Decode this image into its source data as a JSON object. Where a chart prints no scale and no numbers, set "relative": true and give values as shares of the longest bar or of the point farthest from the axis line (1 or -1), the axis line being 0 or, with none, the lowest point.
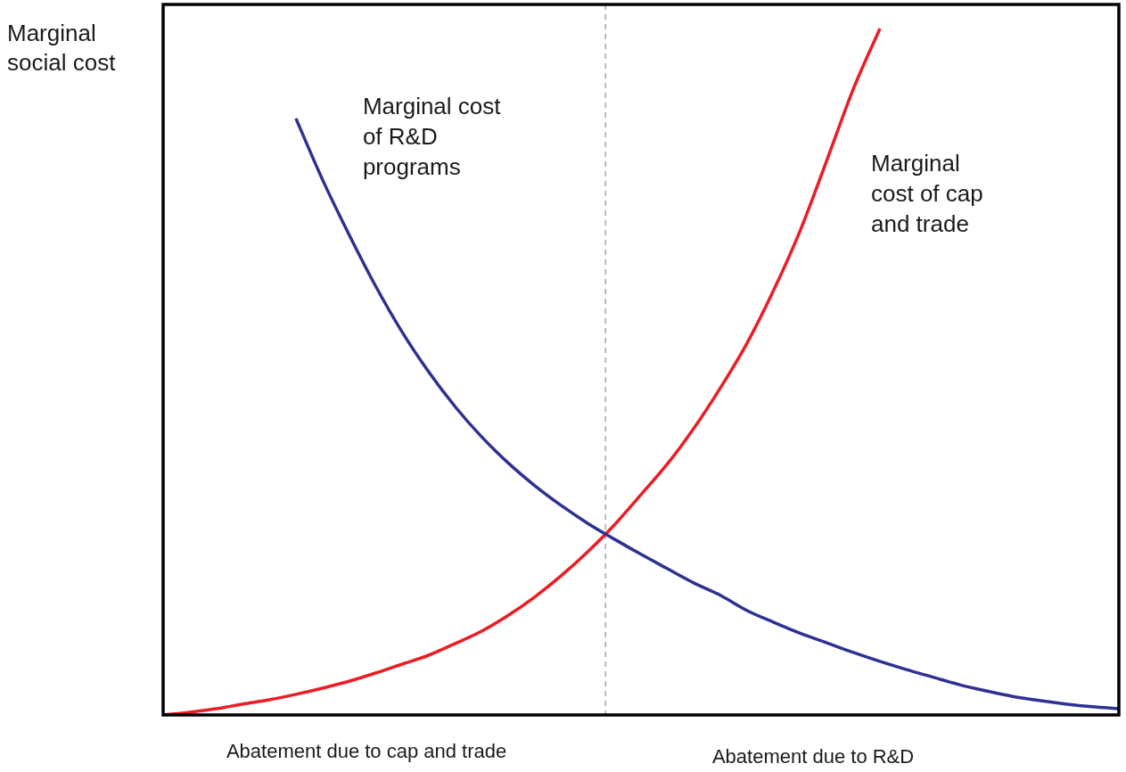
{
  "chart_data": {
    "type": "line",
    "relative": true,
    "ylabel": "Marginal social cost",
    "categories": [
      null,
      null,
      null,
      null,
      null,
      null,
      null,
      null,
      null,
      null,
      null,
      null,
      null,
      null,
      null,
      null,
      null,
      null,
      null,
      null,
      null,
      null,
      null,
      null,
      null,
      null,
      null,
      null,
      null,
      null,
      null,
      null,
      null,
      null,
      null,
      null,
      null
    ],
    "series": [
      {
        "name": "Marginal cost of R&D programs",
        "color": "#2e3192",
        "values": [
          null,
          null,
          null,
          null,
          null,
          0.869,
          0.78,
          0.7,
          0.625,
          0.558,
          0.5,
          0.449,
          0.405,
          0.367,
          0.334,
          0.305,
          0.279,
          0.256,
          0.234,
          0.213,
          0.192,
          0.174,
          0.152,
          0.135,
          0.119,
          0.105,
          0.091,
          0.078,
          0.066,
          0.055,
          0.044,
          0.035,
          0.027,
          0.021,
          0.016,
          0.012,
          0.009
        ]
      },
      {
        "name": "Marginal cost of cap and trade",
        "color": "#ed1c24",
        "values": [
          0,
          0.004,
          0.009,
          0.016,
          0.022,
          0.03,
          0.039,
          0.049,
          0.061,
          0.074,
          0.087,
          0.104,
          0.122,
          0.145,
          0.172,
          0.203,
          0.238,
          0.277,
          0.321,
          0.366,
          0.418,
          0.477,
          0.542,
          0.619,
          0.706,
          0.808,
          0.912,
          1,
          null,
          null,
          null,
          null,
          null,
          null,
          null,
          null,
          null
        ]
      }
    ],
    "annotations": [
      "Abatement due to cap and trade",
      "Abatement due to R&D"
    ],
    "legend": false,
    "marker": "none",
    "line_style": "solid"
  }
}
